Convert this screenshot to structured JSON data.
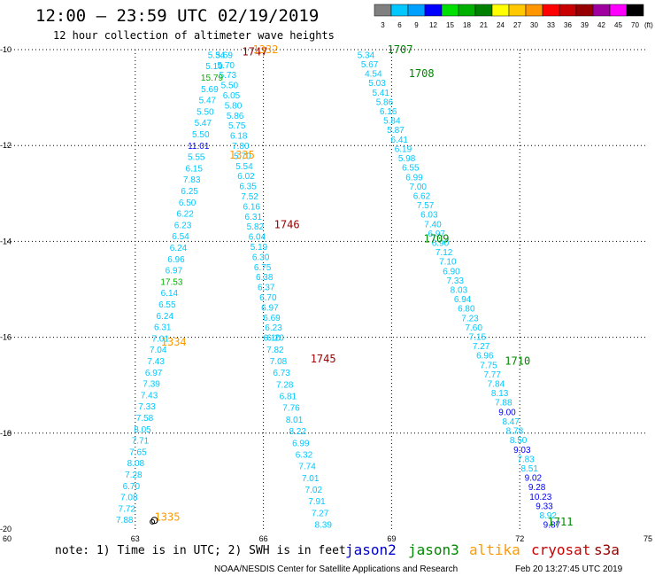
{
  "chart_data": {
    "type": "scatter",
    "title": "12:00 — 23:59 UTC 02/19/2019",
    "subtitle": "12 hour collection of altimeter wave heights",
    "x_ticks": [
      "60",
      "63",
      "66",
      "69",
      "72",
      "75"
    ],
    "y_ticks": [
      "-10",
      "-12",
      "-14",
      "-16",
      "-18",
      "-20"
    ],
    "xlim": [
      60,
      75
    ],
    "ylim": [
      -20,
      -10
    ],
    "grid": true,
    "color_scale": {
      "labels": [
        "3",
        "6",
        "9",
        "12",
        "15",
        "18",
        "21",
        "24",
        "27",
        "30",
        "33",
        "36",
        "39",
        "42",
        "45",
        "70"
      ],
      "unit": "(ft)",
      "colors": [
        "#808080",
        "#00c8ff",
        "#00a0ff",
        "#0000ff",
        "#00e000",
        "#00b000",
        "#008000",
        "#ffff00",
        "#ffc800",
        "#ff9600",
        "#ff0000",
        "#c80000",
        "#960000",
        "#a000a0",
        "#ff00ff",
        "#000000"
      ]
    },
    "tracks": [
      {
        "satellite": "s3a",
        "color": "#990000",
        "x_start": 65.08,
        "y_start": -10.1,
        "x_end": 66.28,
        "y_end": -16.0,
        "values": [
          "5.69",
          "5.70",
          "5.73",
          "5.50",
          "6.05",
          "5.80",
          "5.86",
          "5.75",
          "6.18",
          "7.80",
          "5.70",
          "5.54",
          "6.02",
          "6.35",
          "7.52",
          "6.16",
          "6.31",
          "5.82",
          "6.04",
          "5.19",
          "6.30",
          "6.75",
          "6.38",
          "6.37",
          "6.70",
          "6.97",
          "6.69",
          "6.23",
          "6.20"
        ]
      },
      {
        "satellite": "altika",
        "color": "#ff9900",
        "x_start": 66.2,
        "y_start": -16.0,
        "x_end": 67.4,
        "y_end": -19.9,
        "values": [
          "6.10",
          "7.82",
          "7.08",
          "6.73",
          "7.28",
          "6.81",
          "7.76",
          "8.01",
          "8.22",
          "6.99",
          "6.32",
          "7.74",
          "7.01",
          "7.02",
          "7.91",
          "7.27",
          "8.39"
        ]
      },
      {
        "satellite": "altika",
        "color": "#ff9900",
        "x_start": 64.9,
        "y_start": -10.1,
        "x_end": 62.75,
        "y_end": -19.8,
        "values": [
          "5.34",
          "5.19",
          "15.79",
          "5.69",
          "5.47",
          "5.50",
          "5.47",
          "5.50",
          "11.01",
          "5.55",
          "6.15",
          "7.83",
          "6.25",
          "6.50",
          "6.22",
          "6.23",
          "6.54",
          "6.24",
          "6.96",
          "6.97",
          "17.53",
          "6.14",
          "6.55",
          "6.24",
          "6.31",
          "7.01",
          "7.04",
          "7.43",
          "6.97",
          "7.39",
          "7.43",
          "7.33",
          "7.58",
          "8.05",
          "7.71",
          "7.65",
          "8.08",
          "7.28",
          "6.70",
          "7.08",
          "7.72",
          "7.88"
        ]
      },
      {
        "satellite": "jason3",
        "color": "#008800",
        "x_start": 68.4,
        "y_start": -10.1,
        "x_end": 72.75,
        "y_end": -19.9,
        "values": [
          "5.34",
          "5.67",
          "4.54",
          "5.03",
          "5.41",
          "5.86",
          "6.16",
          "5.84",
          "5.87",
          "6.41",
          "6.19",
          "5.98",
          "6.55",
          "6.99",
          "7.00",
          "6.62",
          "7.57",
          "6.03",
          "7.40",
          "6.97",
          "6.90",
          "7.12",
          "7.10",
          "6.90",
          "7.33",
          "8.03",
          "6.94",
          "6.80",
          "7.23",
          "7.60",
          "7.15",
          "7.27",
          "6.96",
          "7.75",
          "7.77",
          "7.84",
          "8.13",
          "7.88",
          "9.00",
          "8.47",
          "8.78",
          "8.50",
          "9.03",
          "7.83",
          "8.51",
          "9.02",
          "9.28",
          "10.23",
          "9.33",
          "8.92",
          "9.87"
        ]
      }
    ],
    "time_labels": [
      {
        "text": "1747",
        "x": 65.5,
        "y": -10.05,
        "color": "#990000"
      },
      {
        "text": "1332",
        "x": 65.75,
        "y": -10.0,
        "color": "#ff9900"
      },
      {
        "text": "1335",
        "x": 65.2,
        "y": -12.2,
        "color": "#ff9900"
      },
      {
        "text": "1746",
        "x": 66.25,
        "y": -13.65,
        "color": "#990000"
      },
      {
        "text": "1334",
        "x": 63.6,
        "y": -16.1,
        "color": "#ff9900"
      },
      {
        "text": "1745",
        "x": 67.1,
        "y": -16.45,
        "color": "#990000"
      },
      {
        "text": "1335",
        "x": 63.45,
        "y": -19.75,
        "color": "#ff9900"
      },
      {
        "text": "1707",
        "x": 68.9,
        "y": -10.0,
        "color": "#008800"
      },
      {
        "text": "1708",
        "x": 69.4,
        "y": -10.5,
        "color": "#008800"
      },
      {
        "text": "1709",
        "x": 69.75,
        "y": -13.95,
        "color": "#008800"
      },
      {
        "text": "1710",
        "x": 71.65,
        "y": -16.5,
        "color": "#008800"
      },
      {
        "text": "1711",
        "x": 72.65,
        "y": -19.85,
        "color": "#008800"
      }
    ]
  },
  "footer": {
    "note": "note: 1) Time is in UTC; 2) SWH is in feet",
    "satellites": [
      {
        "name": "jason2",
        "color": "#0000cc"
      },
      {
        "name": "jason3",
        "color": "#008800"
      },
      {
        "name": "altika",
        "color": "#ff9900"
      },
      {
        "name": "cryosat",
        "color": "#cc0000"
      },
      {
        "name": "s3a",
        "color": "#990000"
      }
    ],
    "credit": "NOAA/NESDIS Center for Satellite Applications and Research",
    "timestamp": "Feb 20 13:27:45 UTC 2019"
  }
}
